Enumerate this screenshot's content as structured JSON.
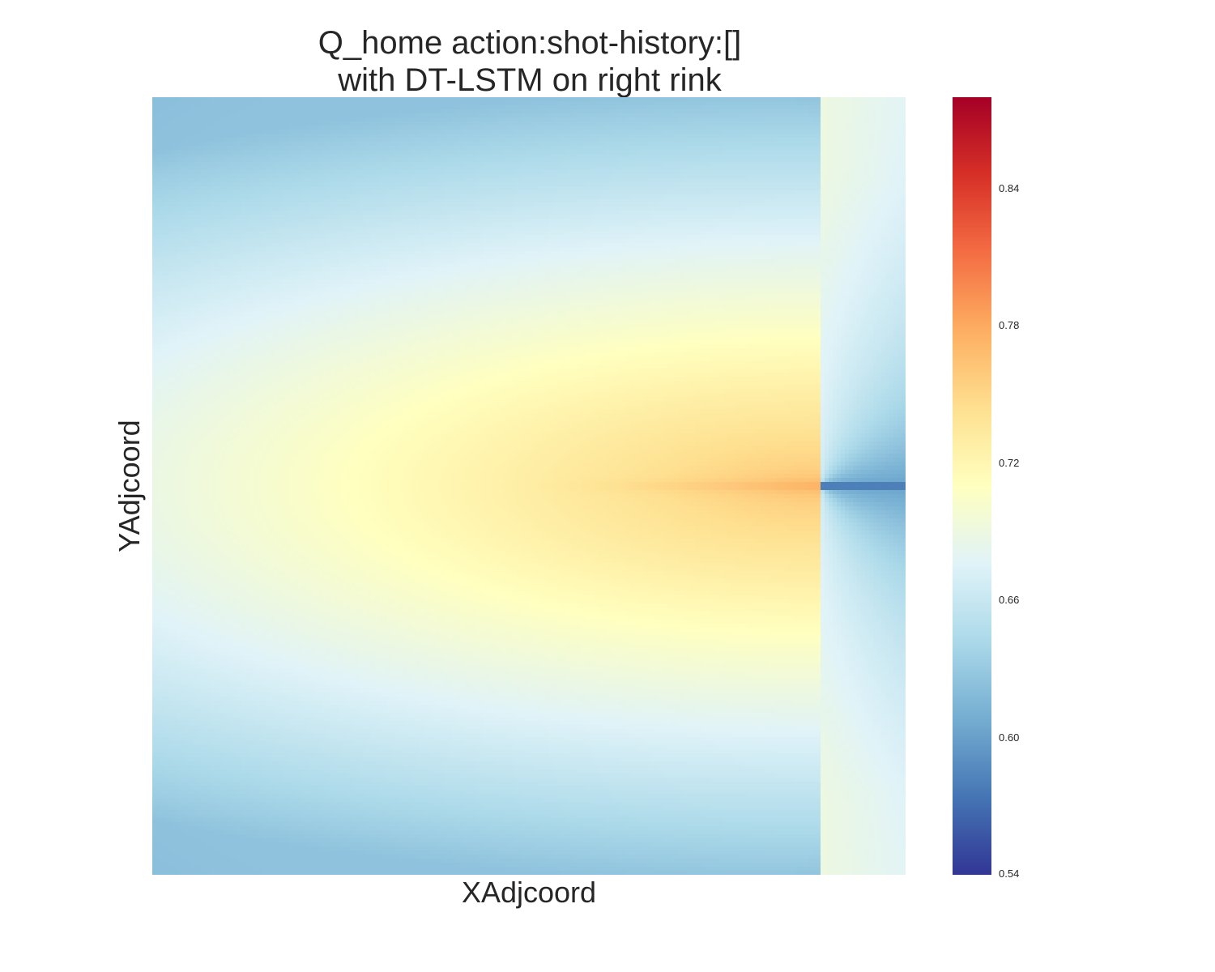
{
  "chart_data": {
    "type": "heatmap",
    "title_lines": [
      "Q_home action:shot-history:[]",
      "with DT-LSTM on right rink"
    ],
    "xlabel": "XAdjcoord",
    "ylabel": "YAdjcoord",
    "colormap": "RdYlBu_r",
    "colorbar": {
      "min": 0.54,
      "max": 0.88,
      "ticks": [
        0.84,
        0.78,
        0.72,
        0.66,
        0.6,
        0.54
      ],
      "tick_labels": [
        "0.84",
        "0.78",
        "0.72",
        "0.66",
        "0.60",
        "0.54"
      ]
    },
    "value_summary": {
      "peak_value": 0.76,
      "min_value": 0.57,
      "corner_value": 0.625,
      "edge_center_left": 0.665,
      "right_region_value": 0.6
    },
    "colors": {
      "c0": "#313695",
      "c1": "#4575b4",
      "c2": "#74add1",
      "c3": "#abd9e9",
      "c4": "#e0f3f8",
      "c5": "#ffffbf",
      "c6": "#fee090",
      "c7": "#fdae61",
      "c8": "#f46d43",
      "c9": "#d73027",
      "c10": "#a50026"
    }
  }
}
